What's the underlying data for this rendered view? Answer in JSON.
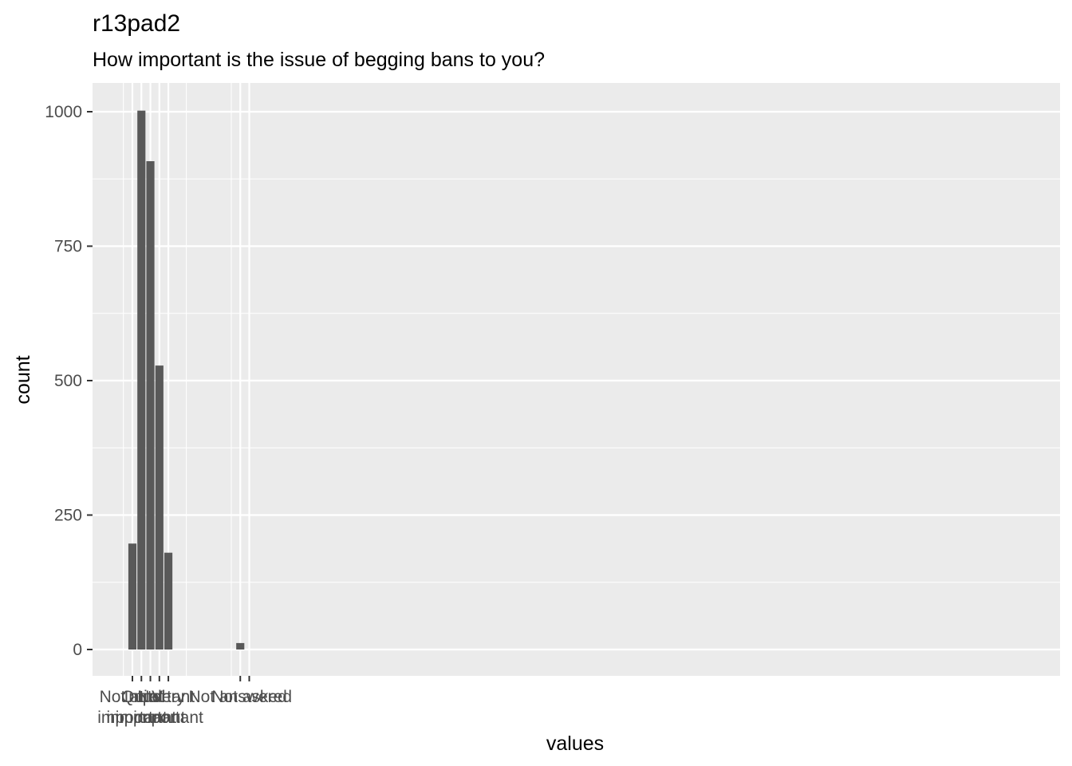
{
  "chart_data": {
    "type": "bar",
    "title": "r13pad2",
    "subtitle": "How important is the issue of begging bans to you?",
    "xlabel": "values",
    "ylabel": "count",
    "x_domain": [
      -9,
      5
    ],
    "ylim": [
      0,
      1050
    ],
    "y_ticks": [
      0,
      250,
      500,
      750,
      1000
    ],
    "y_tick_labels": [
      "0",
      "250",
      "500",
      "750",
      "1000"
    ],
    "x_gridlines": [
      -9,
      -8,
      -7,
      -2,
      5
    ],
    "bars": [
      {
        "x": -8,
        "value": 12
      },
      {
        "x": 0,
        "value": 180
      },
      {
        "x": 1,
        "value": 528
      },
      {
        "x": 2,
        "value": 908
      },
      {
        "x": 3,
        "value": 1002
      },
      {
        "x": 4,
        "value": 197
      }
    ],
    "x_ticks": [
      {
        "x": -9,
        "label": "Not asked"
      },
      {
        "x": -8,
        "label": "Not answered"
      },
      {
        "x": 0,
        "label": "Very important"
      },
      {
        "x": 1,
        "label": "Important"
      },
      {
        "x": 2,
        "label": "Not important"
      },
      {
        "x": 3,
        "label": "Quite important"
      },
      {
        "x": 4,
        "label": "Not at all important"
      }
    ],
    "grid": true,
    "bar_color": "#595959",
    "panel_color": "#ebebeb",
    "grid_color": "#ffffff"
  }
}
